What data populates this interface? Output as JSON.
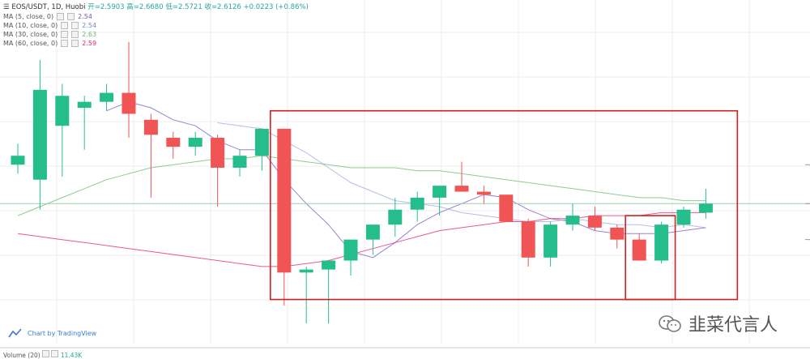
{
  "header": {
    "symbol_line": "EOS/USDT, 1D, Huobi",
    "open_label": "开=2.5903",
    "high_label": "高=2.6680",
    "low_label": "低=2.5721",
    "close_label": "收=2.6126",
    "change_label": "+0.0223 (+0.86%)"
  },
  "legend": [
    {
      "label": "MA (5, close, 0)",
      "value": "2.54",
      "color": "#7e57c2"
    },
    {
      "label": "MA (10, close, 0)",
      "value": "2.54",
      "color": "#9fa8da"
    },
    {
      "label": "MA (30, close, 0)",
      "value": "2.63",
      "color": "#66bb6a"
    },
    {
      "label": "MA (60, close, 0)",
      "value": "2.59",
      "color": "#e91e63"
    }
  ],
  "attribution": "Chart by TradingView",
  "volume_label": "Volume (20)",
  "volume_value": "11.43K",
  "watermark": "韭菜代言人",
  "colors": {
    "up": "#26bd8c",
    "down": "#f05454",
    "highlight": "#d42020",
    "grid": "#eeeeee"
  },
  "chart_data": {
    "type": "candlestick",
    "title": "EOS/USDT, 1D, Huobi",
    "ylim": [
      2.15,
      3.3
    ],
    "candles": [
      {
        "o": 2.75,
        "h": 2.82,
        "l": 2.72,
        "c": 2.78
      },
      {
        "o": 2.7,
        "h": 3.1,
        "l": 2.6,
        "c": 3.0
      },
      {
        "o": 2.88,
        "h": 3.02,
        "l": 2.71,
        "c": 2.98
      },
      {
        "o": 2.94,
        "h": 2.98,
        "l": 2.8,
        "c": 2.96
      },
      {
        "o": 2.96,
        "h": 3.02,
        "l": 2.93,
        "c": 2.99
      },
      {
        "o": 2.99,
        "h": 3.16,
        "l": 2.84,
        "c": 2.92
      },
      {
        "o": 2.9,
        "h": 2.92,
        "l": 2.64,
        "c": 2.85
      },
      {
        "o": 2.84,
        "h": 2.86,
        "l": 2.77,
        "c": 2.81
      },
      {
        "o": 2.81,
        "h": 2.86,
        "l": 2.78,
        "c": 2.84
      },
      {
        "o": 2.84,
        "h": 2.85,
        "l": 2.61,
        "c": 2.74
      },
      {
        "o": 2.74,
        "h": 2.8,
        "l": 2.71,
        "c": 2.78
      },
      {
        "o": 2.78,
        "h": 2.87,
        "l": 2.73,
        "c": 2.87
      },
      {
        "o": 2.87,
        "h": 2.87,
        "l": 2.28,
        "c": 2.39
      },
      {
        "o": 2.39,
        "h": 2.41,
        "l": 2.22,
        "c": 2.4
      },
      {
        "o": 2.4,
        "h": 2.43,
        "l": 2.22,
        "c": 2.43
      },
      {
        "o": 2.43,
        "h": 2.49,
        "l": 2.38,
        "c": 2.5
      },
      {
        "o": 2.5,
        "h": 2.55,
        "l": 2.45,
        "c": 2.55
      },
      {
        "o": 2.55,
        "h": 2.64,
        "l": 2.51,
        "c": 2.6
      },
      {
        "o": 2.6,
        "h": 2.66,
        "l": 2.56,
        "c": 2.64
      },
      {
        "o": 2.64,
        "h": 2.67,
        "l": 2.58,
        "c": 2.68
      },
      {
        "o": 2.68,
        "h": 2.76,
        "l": 2.66,
        "c": 2.66
      },
      {
        "o": 2.66,
        "h": 2.68,
        "l": 2.62,
        "c": 2.65
      },
      {
        "o": 2.65,
        "h": 2.65,
        "l": 2.57,
        "c": 2.56
      },
      {
        "o": 2.56,
        "h": 2.57,
        "l": 2.41,
        "c": 2.44
      },
      {
        "o": 2.44,
        "h": 2.56,
        "l": 2.41,
        "c": 2.55
      },
      {
        "o": 2.55,
        "h": 2.62,
        "l": 2.53,
        "c": 2.58
      },
      {
        "o": 2.58,
        "h": 2.61,
        "l": 2.53,
        "c": 2.54
      },
      {
        "o": 2.54,
        "h": 2.55,
        "l": 2.47,
        "c": 2.5
      },
      {
        "o": 2.5,
        "h": 2.52,
        "l": 2.43,
        "c": 2.43
      },
      {
        "o": 2.43,
        "h": 2.56,
        "l": 2.42,
        "c": 2.55
      },
      {
        "o": 2.55,
        "h": 2.61,
        "l": 2.54,
        "c": 2.6
      },
      {
        "o": 2.59,
        "h": 2.67,
        "l": 2.57,
        "c": 2.62
      }
    ],
    "ma": [
      {
        "period": 5,
        "color": "#7e57c2",
        "values": [
          null,
          null,
          null,
          null,
          2.93,
          2.96,
          2.94,
          2.9,
          2.88,
          2.83,
          2.8,
          2.8,
          2.7,
          2.62,
          2.55,
          2.46,
          2.44,
          2.49,
          2.55,
          2.59,
          2.62,
          2.65,
          2.64,
          2.6,
          2.57,
          2.56,
          2.53,
          2.52,
          2.52,
          2.52,
          2.53,
          2.54
        ]
      },
      {
        "period": 10,
        "color": "#9fa8da",
        "values": [
          null,
          null,
          null,
          null,
          null,
          null,
          null,
          null,
          null,
          2.89,
          2.88,
          2.87,
          2.83,
          2.79,
          2.74,
          2.69,
          2.66,
          2.63,
          2.62,
          2.61,
          2.59,
          2.58,
          2.57,
          2.56,
          2.56,
          2.57,
          2.56,
          2.55,
          2.55,
          2.54,
          2.55,
          2.54
        ]
      },
      {
        "period": 30,
        "color": "#66bb6a",
        "values": [
          2.58,
          2.61,
          2.64,
          2.67,
          2.7,
          2.72,
          2.74,
          2.75,
          2.76,
          2.77,
          2.77,
          2.78,
          2.77,
          2.76,
          2.75,
          2.74,
          2.74,
          2.74,
          2.73,
          2.73,
          2.72,
          2.71,
          2.7,
          2.69,
          2.68,
          2.67,
          2.66,
          2.65,
          2.64,
          2.64,
          2.63,
          2.63
        ]
      },
      {
        "period": 60,
        "color": "#e91e63",
        "values": [
          2.52,
          2.51,
          2.5,
          2.49,
          2.48,
          2.47,
          2.46,
          2.45,
          2.44,
          2.43,
          2.42,
          2.41,
          2.41,
          2.42,
          2.43,
          2.45,
          2.47,
          2.49,
          2.51,
          2.53,
          2.54,
          2.55,
          2.56,
          2.56,
          2.57,
          2.57,
          2.58,
          2.58,
          2.58,
          2.59,
          2.59,
          2.59
        ]
      }
    ],
    "last_price_line": 2.62
  }
}
